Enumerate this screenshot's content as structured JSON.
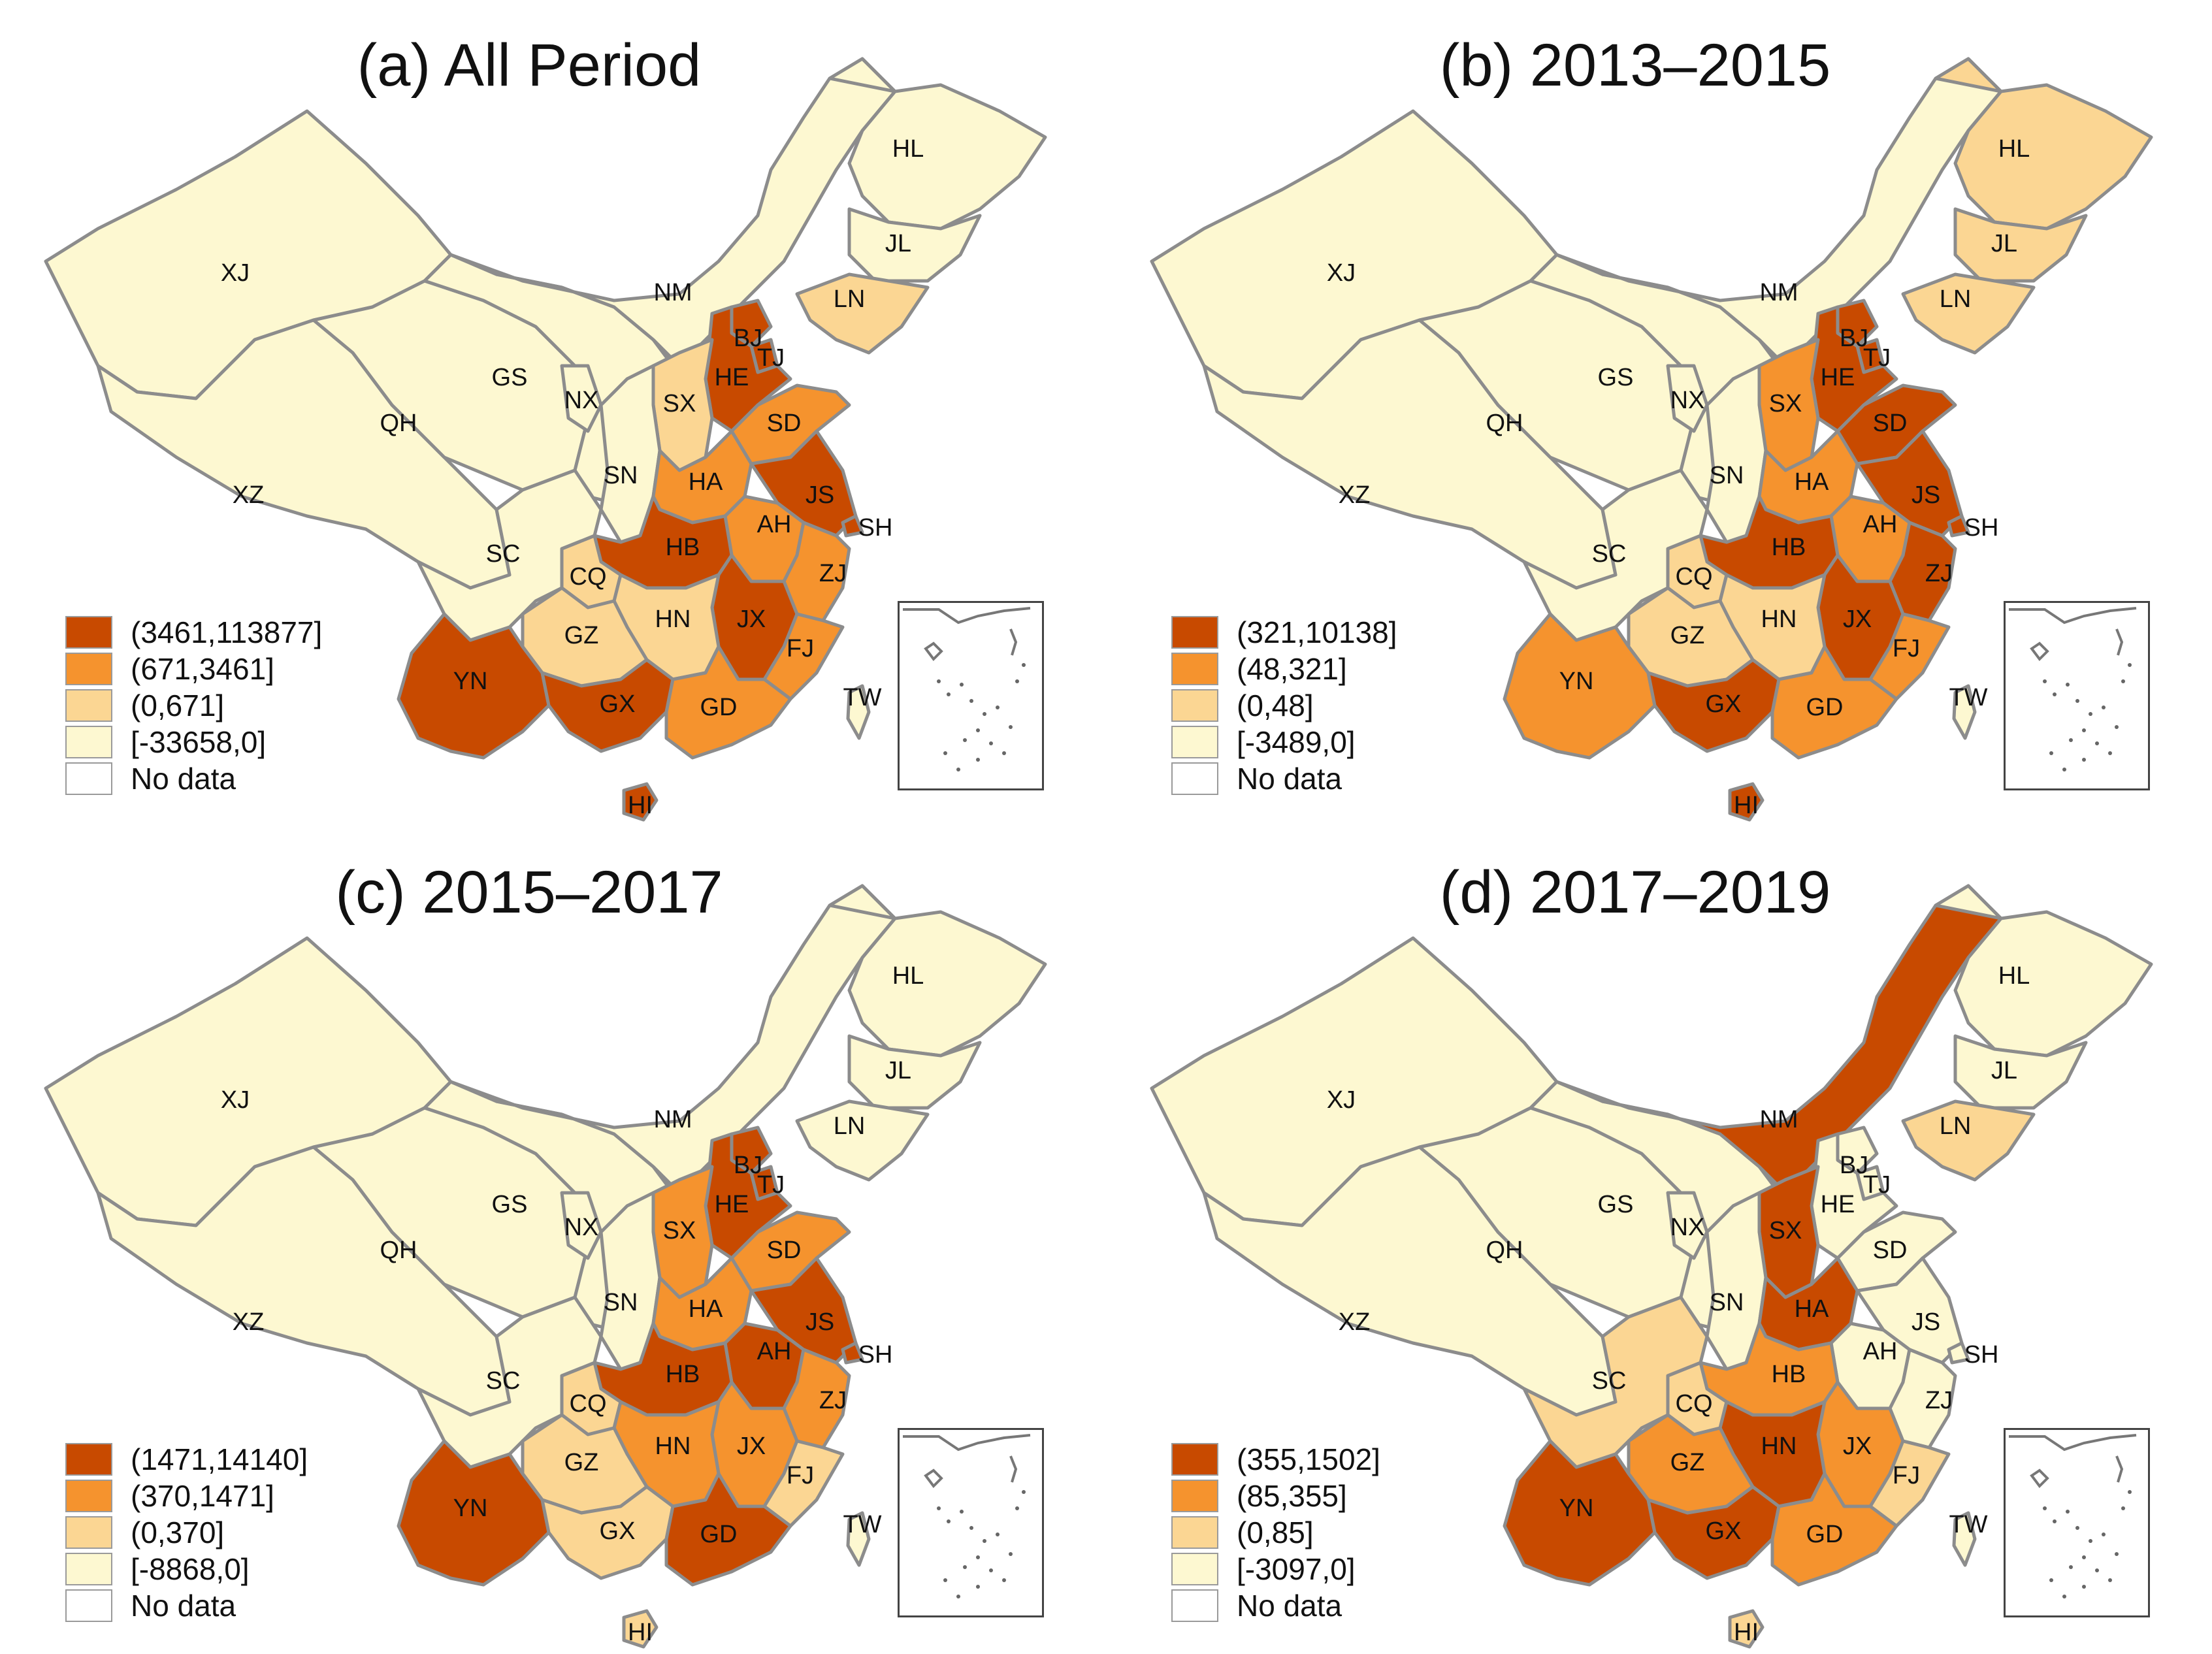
{
  "colors": {
    "class1": "#c84a00",
    "class2": "#f5932e",
    "class3": "#fbd693",
    "class4": "#fdf8d1",
    "nodata": "#ffffff",
    "border": "#8c8c8c"
  },
  "panels": [
    {
      "title": "(a) All Period",
      "legend": [
        "(3461,113877]",
        "(671,3461]",
        "(0,671]",
        "[-33658,0]",
        "No data"
      ],
      "classes": {
        "XJ": 4,
        "XZ": 4,
        "QH": 4,
        "GS": 4,
        "NX": 4,
        "NM": 4,
        "SN": 4,
        "SC": 4,
        "HL": 4,
        "JL": 4,
        "TW": 4,
        "LN": 3,
        "SX": 3,
        "CQ": 3,
        "GZ": 3,
        "HN": 3,
        "SD": 2,
        "HA": 2,
        "AH": 2,
        "ZJ": 2,
        "FJ": 2,
        "GD": 2,
        "BJ": 1,
        "TJ": 1,
        "HE": 1,
        "JS": 1,
        "SH": 1,
        "HB": 1,
        "JX": 1,
        "YN": 1,
        "GX": 1,
        "HI": 1
      }
    },
    {
      "title": "(b) 2013–2015",
      "legend": [
        "(321,10138]",
        "(48,321]",
        "(0,48]",
        "[-3489,0]",
        "No data"
      ],
      "classes": {
        "XJ": 4,
        "XZ": 4,
        "QH": 4,
        "GS": 4,
        "NX": 4,
        "NM": 4,
        "SN": 4,
        "SC": 4,
        "TW": 4,
        "HL": 3,
        "JL": 3,
        "LN": 3,
        "CQ": 3,
        "GZ": 3,
        "HN": 3,
        "SX": 2,
        "HA": 2,
        "AH": 2,
        "YN": 2,
        "GD": 2,
        "FJ": 2,
        "BJ": 1,
        "TJ": 1,
        "HE": 1,
        "SD": 1,
        "JS": 1,
        "SH": 1,
        "ZJ": 1,
        "HB": 1,
        "JX": 1,
        "GX": 1,
        "HI": 1
      }
    },
    {
      "title": "(c) 2015–2017",
      "legend": [
        "(1471,14140]",
        "(370,1471]",
        "(0,370]",
        "[-8868,0]",
        "No data"
      ],
      "classes": {
        "XJ": 4,
        "XZ": 4,
        "QH": 4,
        "GS": 4,
        "NX": 4,
        "NM": 4,
        "SN": 4,
        "SC": 4,
        "HL": 4,
        "JL": 4,
        "LN": 4,
        "TW": 4,
        "CQ": 3,
        "GZ": 3,
        "GX": 3,
        "FJ": 3,
        "HI": 3,
        "SX": 2,
        "SD": 2,
        "HA": 2,
        "HN": 2,
        "JX": 2,
        "ZJ": 2,
        "BJ": 1,
        "TJ": 1,
        "HE": 1,
        "JS": 1,
        "SH": 1,
        "AH": 1,
        "HB": 1,
        "YN": 1,
        "GD": 1
      }
    },
    {
      "title": "(d) 2017–2019",
      "legend": [
        "(355,1502]",
        "(85,355]",
        "(0,85]",
        "[-3097,0]",
        "No data"
      ],
      "classes": {
        "XJ": 4,
        "XZ": 4,
        "QH": 4,
        "GS": 4,
        "NX": 4,
        "SN": 4,
        "HL": 4,
        "JL": 4,
        "BJ": 4,
        "TJ": 4,
        "HE": 4,
        "SD": 4,
        "JS": 4,
        "SH": 4,
        "AH": 4,
        "ZJ": 4,
        "TW": 4,
        "LN": 3,
        "SC": 3,
        "CQ": 3,
        "FJ": 3,
        "HI": 3,
        "HB": 2,
        "GZ": 2,
        "JX": 2,
        "GD": 2,
        "NM": 1,
        "SX": 1,
        "HA": 1,
        "HN": 1,
        "YN": 1,
        "GX": 1
      }
    }
  ]
}
